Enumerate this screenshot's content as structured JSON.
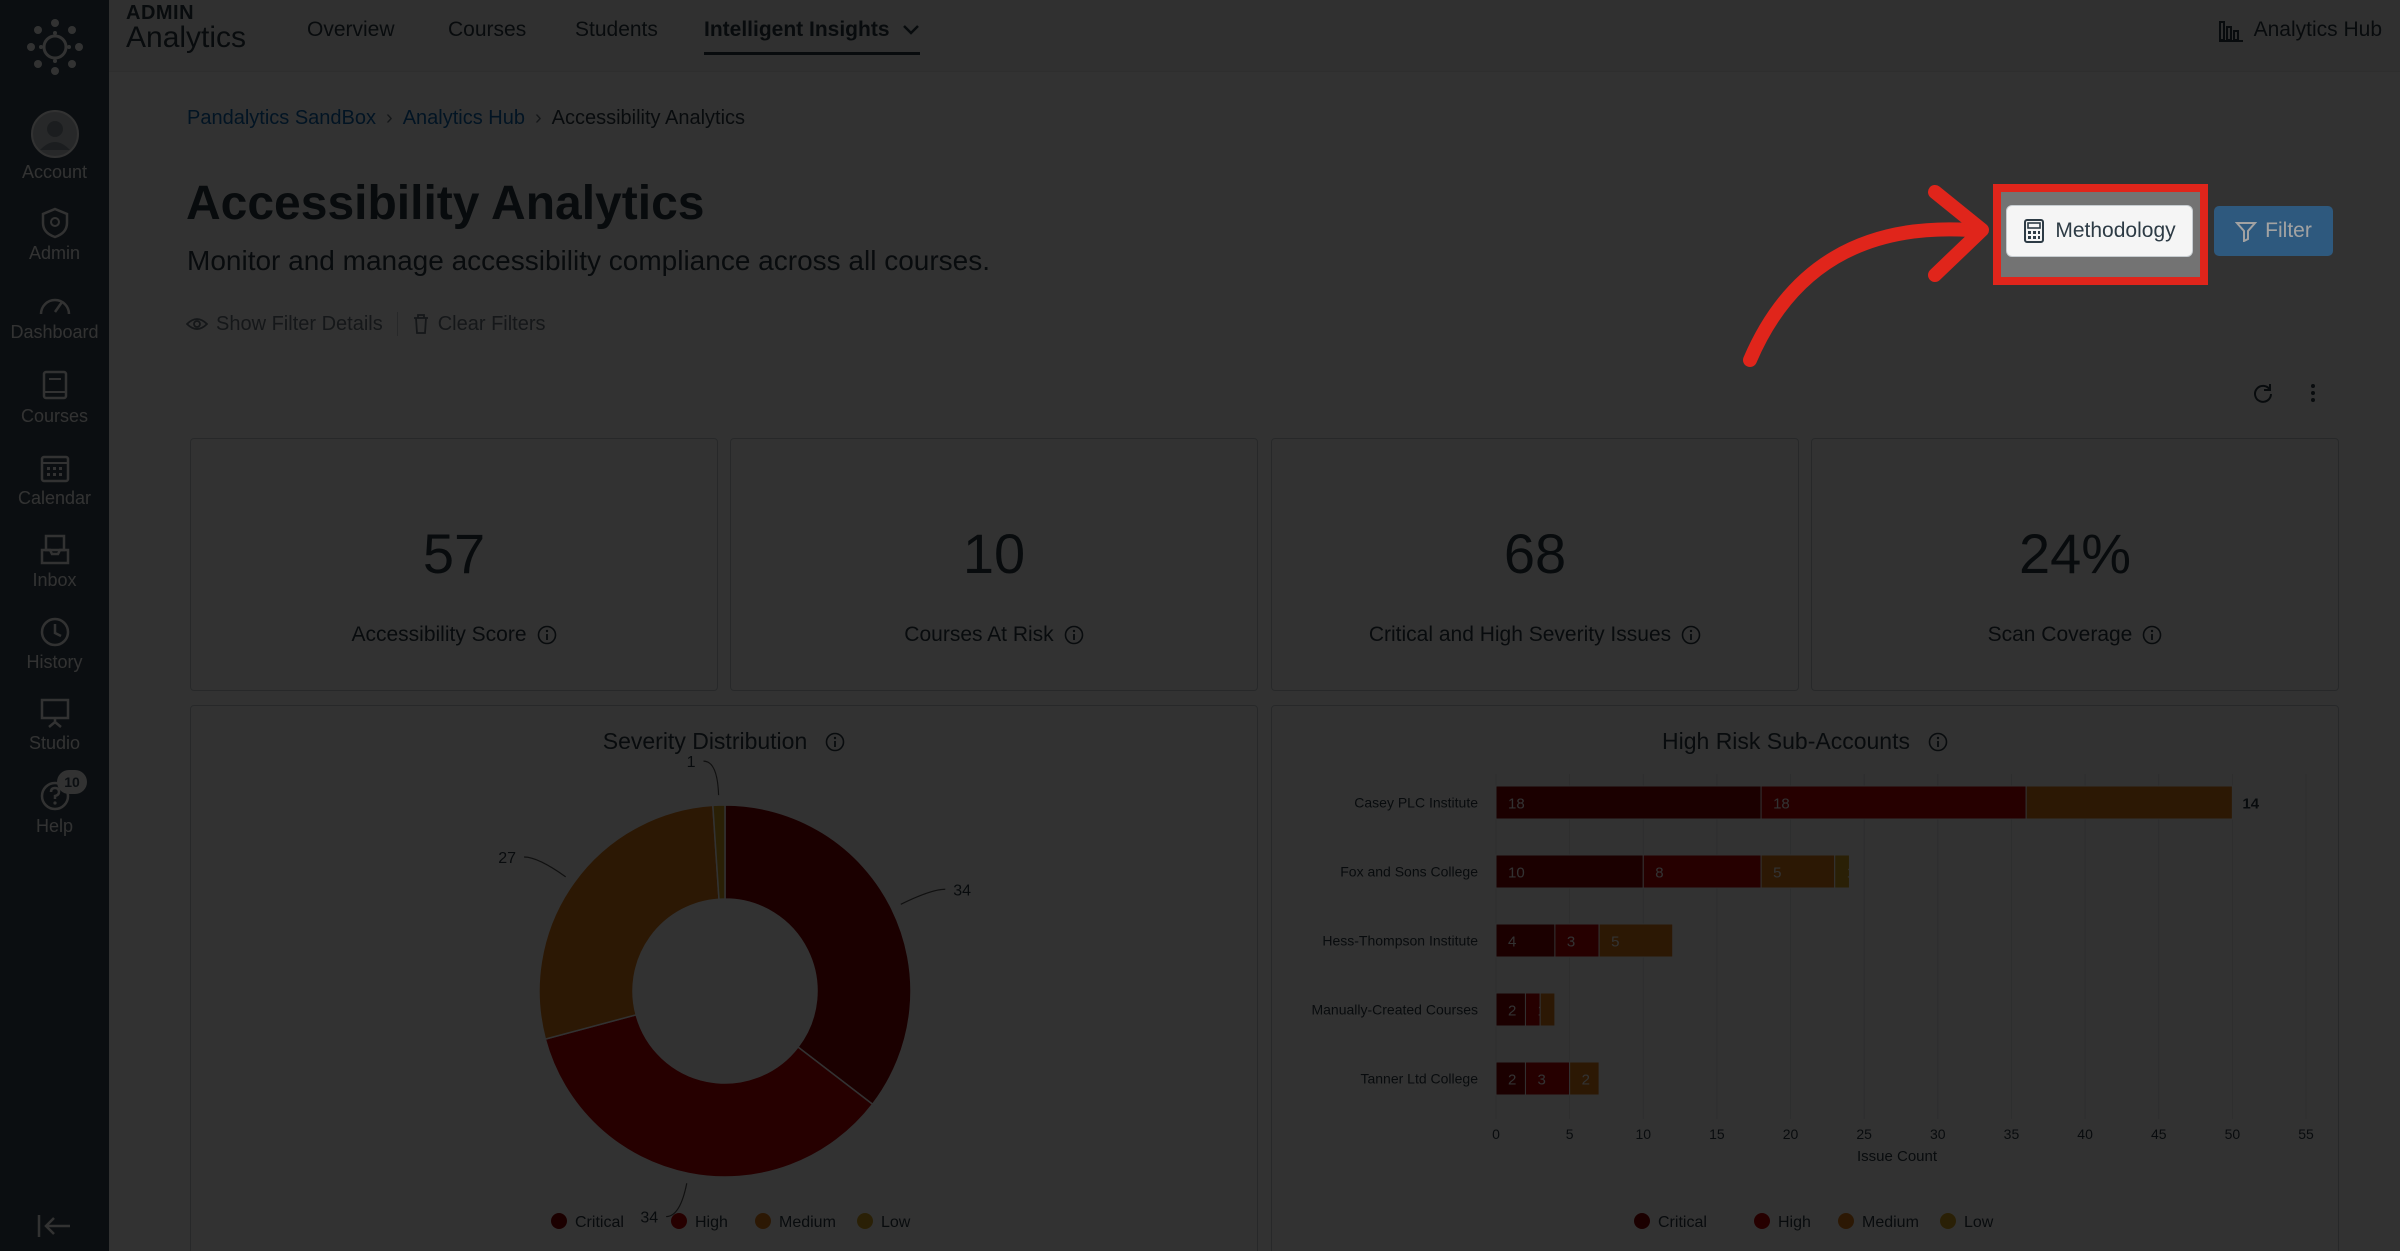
{
  "global_nav": {
    "items": [
      {
        "label": "Account",
        "icon": "avatar-icon"
      },
      {
        "label": "Admin",
        "icon": "shield-icon"
      },
      {
        "label": "Dashboard",
        "icon": "speedometer-icon"
      },
      {
        "label": "Courses",
        "icon": "book-icon"
      },
      {
        "label": "Calendar",
        "icon": "calendar-icon"
      },
      {
        "label": "Inbox",
        "icon": "inbox-icon"
      },
      {
        "label": "History",
        "icon": "clock-icon"
      },
      {
        "label": "Studio",
        "icon": "studio-icon"
      },
      {
        "label": "Help",
        "icon": "help-icon"
      }
    ],
    "help_badge": "10"
  },
  "topbar": {
    "admin_label": "ADMIN",
    "app_name": "Analytics",
    "tabs": [
      "Overview",
      "Courses",
      "Students",
      "Intelligent Insights"
    ],
    "hub_link": "Analytics Hub"
  },
  "breadcrumb": [
    "Pandalytics SandBox",
    "Analytics Hub",
    "Accessibility Analytics"
  ],
  "page": {
    "title": "Accessibility Analytics",
    "subtitle": "Monitor and manage accessibility compliance across all courses.",
    "show_filter_details": "Show Filter Details",
    "clear_filters": "Clear Filters",
    "methodology_label": "Methodology",
    "filter_label": "Filter"
  },
  "kpis": [
    {
      "value": "57",
      "label": "Accessibility Score"
    },
    {
      "value": "10",
      "label": "Courses At Risk"
    },
    {
      "value": "68",
      "label": "Critical and High Severity Issues"
    },
    {
      "value": "24%",
      "label": "Scan Coverage"
    }
  ],
  "colors": {
    "critical": "#8b0000",
    "high": "#c00000",
    "medium": "#e07b1a",
    "low": "#d4a520",
    "highlight": "#e0251b",
    "brand_blue": "#2b7abc"
  },
  "chart_data": [
    {
      "type": "pie",
      "title": "Severity Distribution",
      "categories": [
        "Critical",
        "High",
        "Medium",
        "Low"
      ],
      "values": [
        34,
        34,
        27,
        1
      ],
      "legend": "bottom"
    },
    {
      "type": "bar",
      "title": "High Risk Sub-Accounts",
      "orientation": "horizontal",
      "stacked": true,
      "categories": [
        "Casey PLC Institute",
        "Fox and Sons College",
        "Hess-Thompson Institute",
        "Manually-Created Courses",
        "Tanner Ltd College"
      ],
      "series": [
        {
          "name": "Critical",
          "values": [
            18,
            10,
            4,
            2,
            2
          ]
        },
        {
          "name": "High",
          "values": [
            18,
            8,
            3,
            1,
            3
          ]
        },
        {
          "name": "Medium",
          "values": [
            14,
            5,
            5,
            1,
            2
          ]
        },
        {
          "name": "Low",
          "values": [
            0,
            1,
            0,
            0,
            0
          ]
        }
      ],
      "segment_labels": [
        [
          "18",
          "18",
          "14",
          ""
        ],
        [
          "10",
          "8",
          "5",
          "1"
        ],
        [
          "4",
          "3",
          "5",
          ""
        ],
        [
          "2",
          "1",
          "",
          ""
        ],
        [
          "2",
          "3",
          "2",
          ""
        ]
      ],
      "xlabel": "Issue Count",
      "xticks": [
        0,
        5,
        10,
        15,
        20,
        25,
        30,
        35,
        40,
        45,
        50,
        55
      ],
      "xlim": [
        0,
        55
      ],
      "legend": "bottom"
    }
  ]
}
